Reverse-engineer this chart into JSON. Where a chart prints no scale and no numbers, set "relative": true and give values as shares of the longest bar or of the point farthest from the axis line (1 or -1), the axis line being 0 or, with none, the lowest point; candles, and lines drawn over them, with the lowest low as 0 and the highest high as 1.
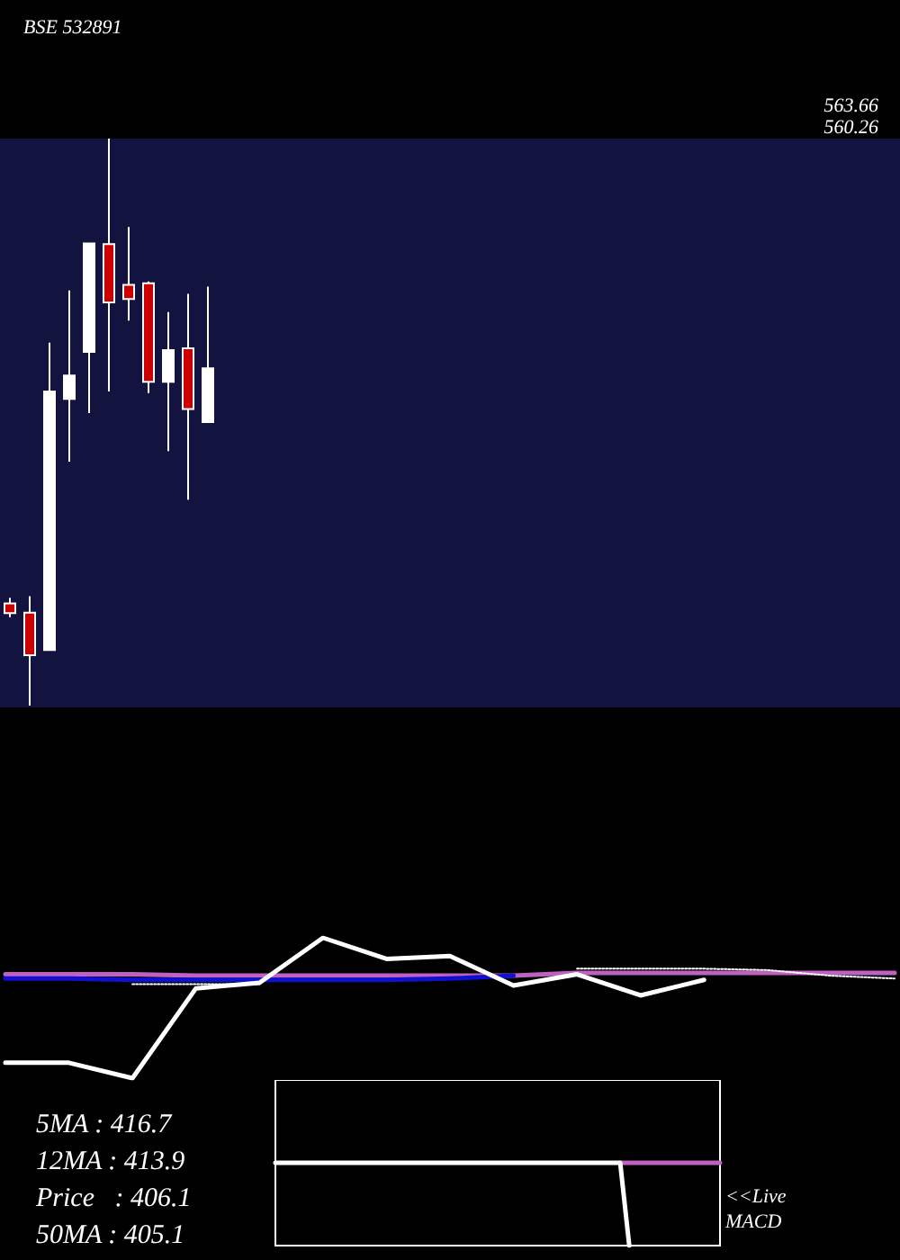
{
  "chart_data": [
    {
      "type": "candlestick",
      "title": "BSE 532891",
      "relative": true,
      "categories": [
        null,
        null,
        null,
        null,
        null,
        null,
        null,
        null,
        null,
        null,
        null
      ],
      "ohlc": [
        [
          0.18,
          0.19,
          0.156,
          0.163
        ],
        [
          0.164,
          0.193,
          0,
          0.089
        ],
        [
          0.098,
          0.64,
          0.098,
          0.554
        ],
        [
          0.541,
          0.732,
          0.43,
          0.582
        ],
        [
          0.624,
          0.815,
          0.516,
          0.815
        ],
        [
          0.814,
          1,
          0.554,
          0.711
        ],
        [
          0.742,
          0.844,
          0.679,
          0.717
        ],
        [
          0.745,
          0.748,
          0.551,
          0.571
        ],
        [
          0.571,
          0.694,
          0.449,
          0.627
        ],
        [
          0.63,
          0.726,
          0.363,
          0.523
        ],
        [
          0.5,
          0.739,
          0.5,
          0.595
        ]
      ],
      "colors": [
        "#cc0000",
        "#cc0000",
        "#ffffff",
        "#ffffff",
        "#ffffff",
        "#cc0000",
        "#cc0000",
        "#cc0000",
        "#ffffff",
        "#cc0000",
        "#ffffff"
      ],
      "annotations": [
        "563.66",
        "560.26"
      ]
    },
    {
      "type": "line",
      "relative": true,
      "marker": "none",
      "categories": [
        null,
        null,
        null,
        null,
        null,
        null,
        null,
        null,
        null,
        null,
        null,
        null,
        null,
        null,
        null
      ],
      "series": [
        {
          "color": "#c060c0",
          "values": [
            0.74,
            0.74,
            0.74,
            0.73,
            0.73,
            0.73,
            0.73,
            0.73,
            0.73,
            0.75,
            0.75,
            0.75,
            0.75,
            0.75,
            0.75
          ]
        },
        {
          "color": "#1010d0",
          "values": [
            0.71,
            0.71,
            0.7,
            0.7,
            0.7,
            0.7,
            0.7,
            0.71,
            0.73,
            null,
            null,
            null,
            null,
            null,
            null
          ]
        },
        {
          "color": "#ffffff",
          "line_style": "dotted",
          "values": [
            null,
            null,
            0.67,
            0.67,
            0.67,
            null,
            null,
            null,
            null,
            0.78,
            0.78,
            0.78,
            0.77,
            0.73,
            0.71
          ]
        },
        {
          "color": "#ffffff",
          "values": [
            0.11,
            0.11,
            0,
            0.64,
            0.68,
            1,
            0.85,
            0.87,
            0.66,
            0.74,
            0.59,
            0.7,
            null,
            null,
            null
          ]
        }
      ],
      "annotations": [
        "5MA : 416.7",
        "12MA : 413.9",
        "Price   : 406.1",
        "50MA : 405.1"
      ]
    },
    {
      "type": "line",
      "relative": true,
      "marker": "none",
      "categories": [
        null,
        null,
        null,
        null,
        null,
        null,
        null,
        null,
        null,
        null,
        null,
        null,
        null,
        null,
        null,
        null,
        null,
        null,
        null,
        null,
        null,
        null,
        null,
        null,
        null,
        null,
        null,
        null,
        null,
        null,
        null,
        null,
        null,
        null,
        null,
        null,
        null,
        null,
        null,
        null,
        null,
        null,
        null,
        null,
        null,
        null,
        null,
        null,
        null,
        null
      ],
      "series": [
        {
          "color": "#c060c0",
          "values": [
            null,
            null,
            null,
            null,
            null,
            null,
            null,
            null,
            null,
            null,
            null,
            null,
            null,
            null,
            null,
            null,
            null,
            null,
            null,
            null,
            null,
            null,
            null,
            null,
            null,
            null,
            null,
            null,
            null,
            null,
            null,
            null,
            null,
            null,
            null,
            null,
            null,
            null,
            1,
            1,
            1,
            1,
            1,
            1,
            1,
            1,
            1,
            1,
            1,
            1
          ]
        },
        {
          "color": "#ffffff",
          "values": [
            1,
            1,
            1,
            1,
            1,
            1,
            1,
            1,
            1,
            1,
            1,
            1,
            1,
            1,
            1,
            1,
            1,
            1,
            1,
            1,
            1,
            1,
            1,
            1,
            1,
            1,
            1,
            1,
            1,
            1,
            1,
            1,
            1,
            1,
            1,
            1,
            1,
            1,
            1,
            0,
            null,
            null,
            null,
            null,
            null,
            null,
            null,
            null,
            null,
            null
          ]
        }
      ],
      "annotations": [
        "<<Live MACD"
      ]
    }
  ]
}
